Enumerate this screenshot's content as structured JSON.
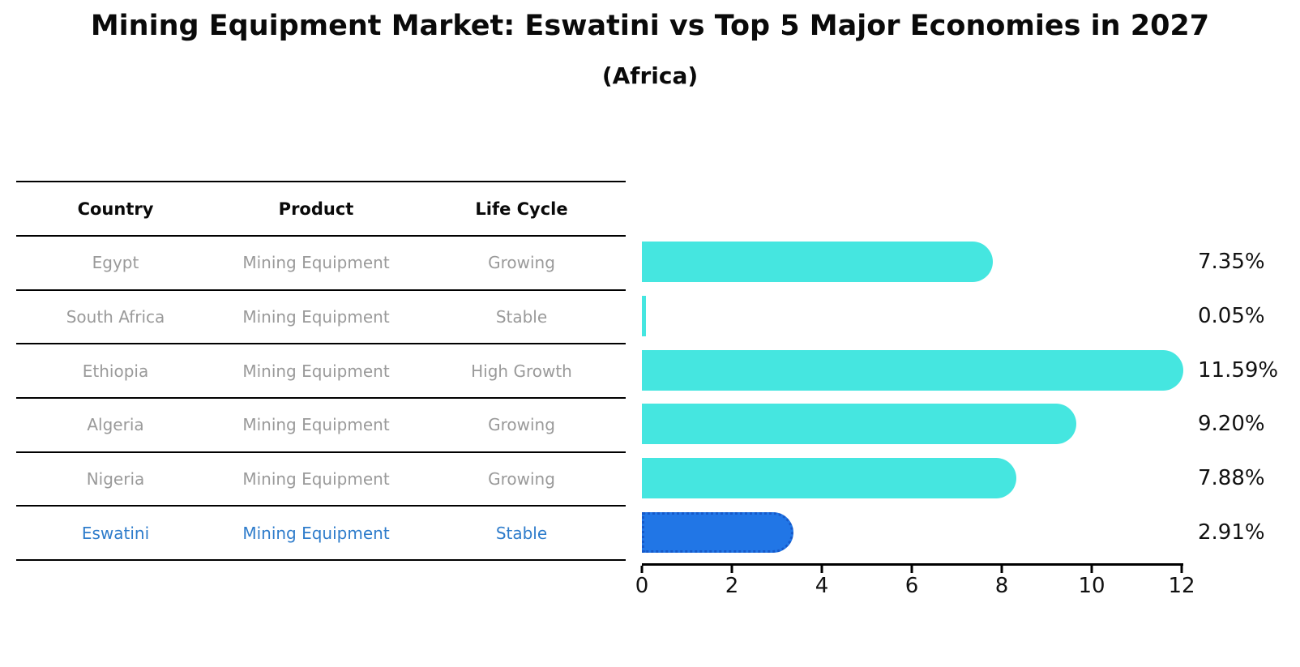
{
  "title": "Mining Equipment Market: Eswatini vs Top 5 Major Economies in 2027",
  "subtitle": "(Africa)",
  "table": {
    "headers": [
      "Country",
      "Product",
      "Life Cycle"
    ],
    "rows": [
      {
        "country": "Egypt",
        "product": "Mining Equipment",
        "life_cycle": "Growing",
        "highlight": false
      },
      {
        "country": "South Africa",
        "product": "Mining Equipment",
        "life_cycle": "Stable",
        "highlight": false
      },
      {
        "country": "Ethiopia",
        "product": "Mining Equipment",
        "life_cycle": "High Growth",
        "highlight": false
      },
      {
        "country": "Algeria",
        "product": "Mining Equipment",
        "life_cycle": "Growing",
        "highlight": false
      },
      {
        "country": "Nigeria",
        "product": "Mining Equipment",
        "life_cycle": "Growing",
        "highlight": false
      },
      {
        "country": "Eswatini",
        "product": "Mining Equipment",
        "life_cycle": "Stable",
        "highlight": true
      }
    ]
  },
  "chart_data": {
    "type": "bar",
    "orientation": "horizontal",
    "title": "Mining Equipment Market: Eswatini vs Top 5 Major Economies in 2027",
    "subtitle": "(Africa)",
    "categories": [
      "Egypt",
      "South Africa",
      "Ethiopia",
      "Algeria",
      "Nigeria",
      "Eswatini"
    ],
    "values": [
      7.35,
      0.05,
      11.59,
      9.2,
      7.88,
      2.91
    ],
    "value_labels": [
      "7.35%",
      "0.05%",
      "11.59%",
      "9.20%",
      "7.88%",
      "2.91%"
    ],
    "xlabel": "",
    "ylabel": "",
    "xlim": [
      0,
      12
    ],
    "xticks": [
      "0",
      "2",
      "4",
      "6",
      "8",
      "10",
      "12"
    ],
    "grid": false,
    "legend": "none",
    "highlight_index": 5,
    "bar_color": "#45E6E0",
    "highlight_color": "#2176E6",
    "highlight_border_color": "#1659C9"
  },
  "colors": {
    "text_muted": "#9a9a9a",
    "highlight_text": "#2E7CCB",
    "axis": "#000000"
  }
}
